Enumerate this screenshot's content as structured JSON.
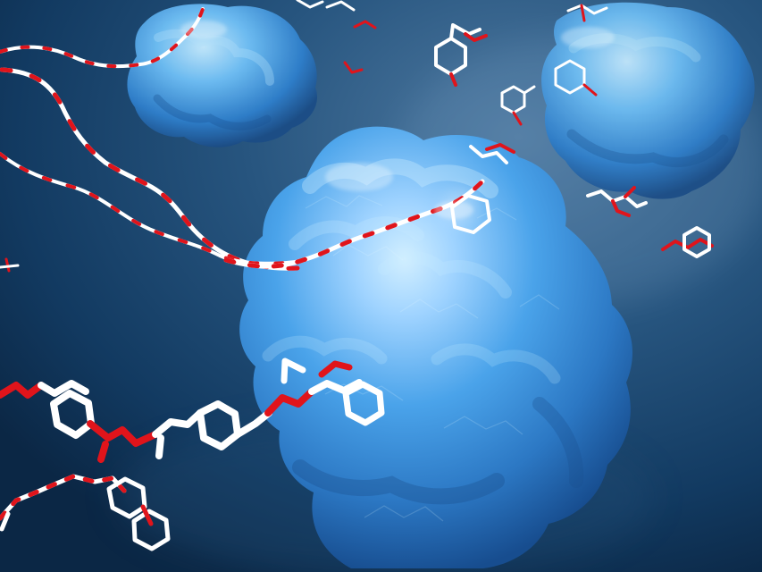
{
  "scene": {
    "subject": "blue-protein-surface-with-polymer-chains",
    "colors": {
      "background_dark": "#0b2745",
      "background_light": "#4f7aa1",
      "protein_light": "#9fd3ff",
      "protein_mid": "#4aa3ea",
      "protein_dark": "#1f5fa8",
      "bond_white": "#ffffff",
      "bond_red": "#e0141b"
    }
  }
}
